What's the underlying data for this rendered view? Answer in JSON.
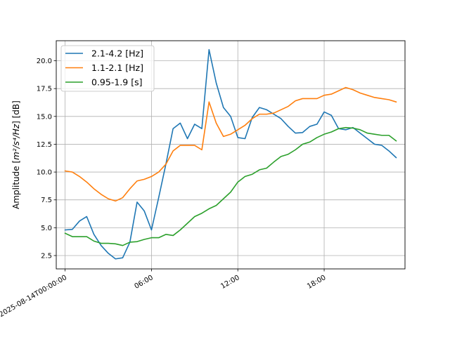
{
  "chart_data": {
    "type": "line",
    "title": "",
    "xlabel": "",
    "ylabel_prefix": "Amplitude [",
    "ylabel_math": "m²/s⁴/Hz",
    "ylabel_suffix": "] [dB]",
    "xlim": [
      "2025-08-13T23:23:00",
      "2025-08-14T23:37:00"
    ],
    "ylim": [
      1.3,
      21.8
    ],
    "yticks": [
      2.5,
      5.0,
      7.5,
      10.0,
      12.5,
      15.0,
      17.5,
      20.0
    ],
    "ytick_labels": [
      "2.5",
      "5.0",
      "7.5",
      "10.0",
      "12.5",
      "15.0",
      "17.5",
      "20.0"
    ],
    "xticks": [
      "2025-08-14T00:00",
      "2025-08-14T06:00",
      "2025-08-14T12:00",
      "2025-08-14T18:00"
    ],
    "xtick_labels": [
      "2025-08-14T00:00:00",
      "06:00",
      "12:00",
      "18:00"
    ],
    "grid": true,
    "legend_position": "top-left",
    "x": [
      "2025-08-14T00:00",
      "2025-08-14T00:30",
      "2025-08-14T01:00",
      "2025-08-14T01:30",
      "2025-08-14T02:00",
      "2025-08-14T02:30",
      "2025-08-14T03:00",
      "2025-08-14T03:30",
      "2025-08-14T04:00",
      "2025-08-14T04:30",
      "2025-08-14T05:00",
      "2025-08-14T05:30",
      "2025-08-14T06:00",
      "2025-08-14T06:30",
      "2025-08-14T07:00",
      "2025-08-14T07:30",
      "2025-08-14T08:00",
      "2025-08-14T08:30",
      "2025-08-14T09:00",
      "2025-08-14T09:30",
      "2025-08-14T10:00",
      "2025-08-14T10:30",
      "2025-08-14T11:00",
      "2025-08-14T11:30",
      "2025-08-14T12:00",
      "2025-08-14T12:30",
      "2025-08-14T13:00",
      "2025-08-14T13:30",
      "2025-08-14T14:00",
      "2025-08-14T14:30",
      "2025-08-14T15:00",
      "2025-08-14T15:30",
      "2025-08-14T16:00",
      "2025-08-14T16:30",
      "2025-08-14T17:00",
      "2025-08-14T17:30",
      "2025-08-14T18:00",
      "2025-08-14T18:30",
      "2025-08-14T19:00",
      "2025-08-14T19:30",
      "2025-08-14T20:00",
      "2025-08-14T20:30",
      "2025-08-14T21:00",
      "2025-08-14T21:30",
      "2025-08-14T22:00",
      "2025-08-14T22:30",
      "2025-08-14T23:00"
    ],
    "series": [
      {
        "name": "2.1-4.2 [Hz]",
        "color": "#1f77b4",
        "values": [
          4.8,
          4.85,
          5.6,
          6.0,
          4.4,
          3.4,
          2.7,
          2.2,
          2.3,
          3.7,
          7.3,
          6.5,
          4.8,
          7.7,
          10.7,
          13.9,
          14.4,
          13.0,
          14.3,
          13.9,
          21.0,
          18.0,
          15.8,
          15.0,
          13.1,
          13.0,
          14.9,
          15.8,
          15.6,
          15.2,
          14.8,
          14.1,
          13.5,
          13.55,
          14.1,
          14.3,
          15.4,
          15.1,
          13.9,
          13.8,
          14.0,
          13.5,
          13.0,
          12.5,
          12.4,
          11.9,
          11.3
        ]
      },
      {
        "name": "1.1-2.1 [Hz]",
        "color": "#ff7f0e",
        "values": [
          10.1,
          10.0,
          9.6,
          9.1,
          8.5,
          8.0,
          7.6,
          7.4,
          7.7,
          8.5,
          9.2,
          9.35,
          9.6,
          10.0,
          10.7,
          11.9,
          12.4,
          12.4,
          12.4,
          12.0,
          16.3,
          14.4,
          13.2,
          13.4,
          13.8,
          14.2,
          14.8,
          15.2,
          15.2,
          15.3,
          15.6,
          15.9,
          16.4,
          16.6,
          16.6,
          16.6,
          16.9,
          17.0,
          17.3,
          17.6,
          17.4,
          17.1,
          16.9,
          16.7,
          16.6,
          16.5,
          16.3
        ]
      },
      {
        "name": "0.95-1.9 [s]",
        "color": "#2ca02c",
        "values": [
          4.5,
          4.2,
          4.2,
          4.2,
          3.8,
          3.6,
          3.6,
          3.55,
          3.4,
          3.7,
          3.75,
          3.95,
          4.1,
          4.1,
          4.4,
          4.3,
          4.8,
          5.4,
          6.0,
          6.3,
          6.7,
          7.0,
          7.6,
          8.2,
          9.1,
          9.6,
          9.8,
          10.2,
          10.35,
          10.9,
          11.4,
          11.6,
          12.0,
          12.5,
          12.7,
          13.1,
          13.4,
          13.6,
          13.9,
          14.0,
          13.95,
          13.8,
          13.5,
          13.4,
          13.3,
          13.3,
          12.8
        ]
      }
    ]
  }
}
